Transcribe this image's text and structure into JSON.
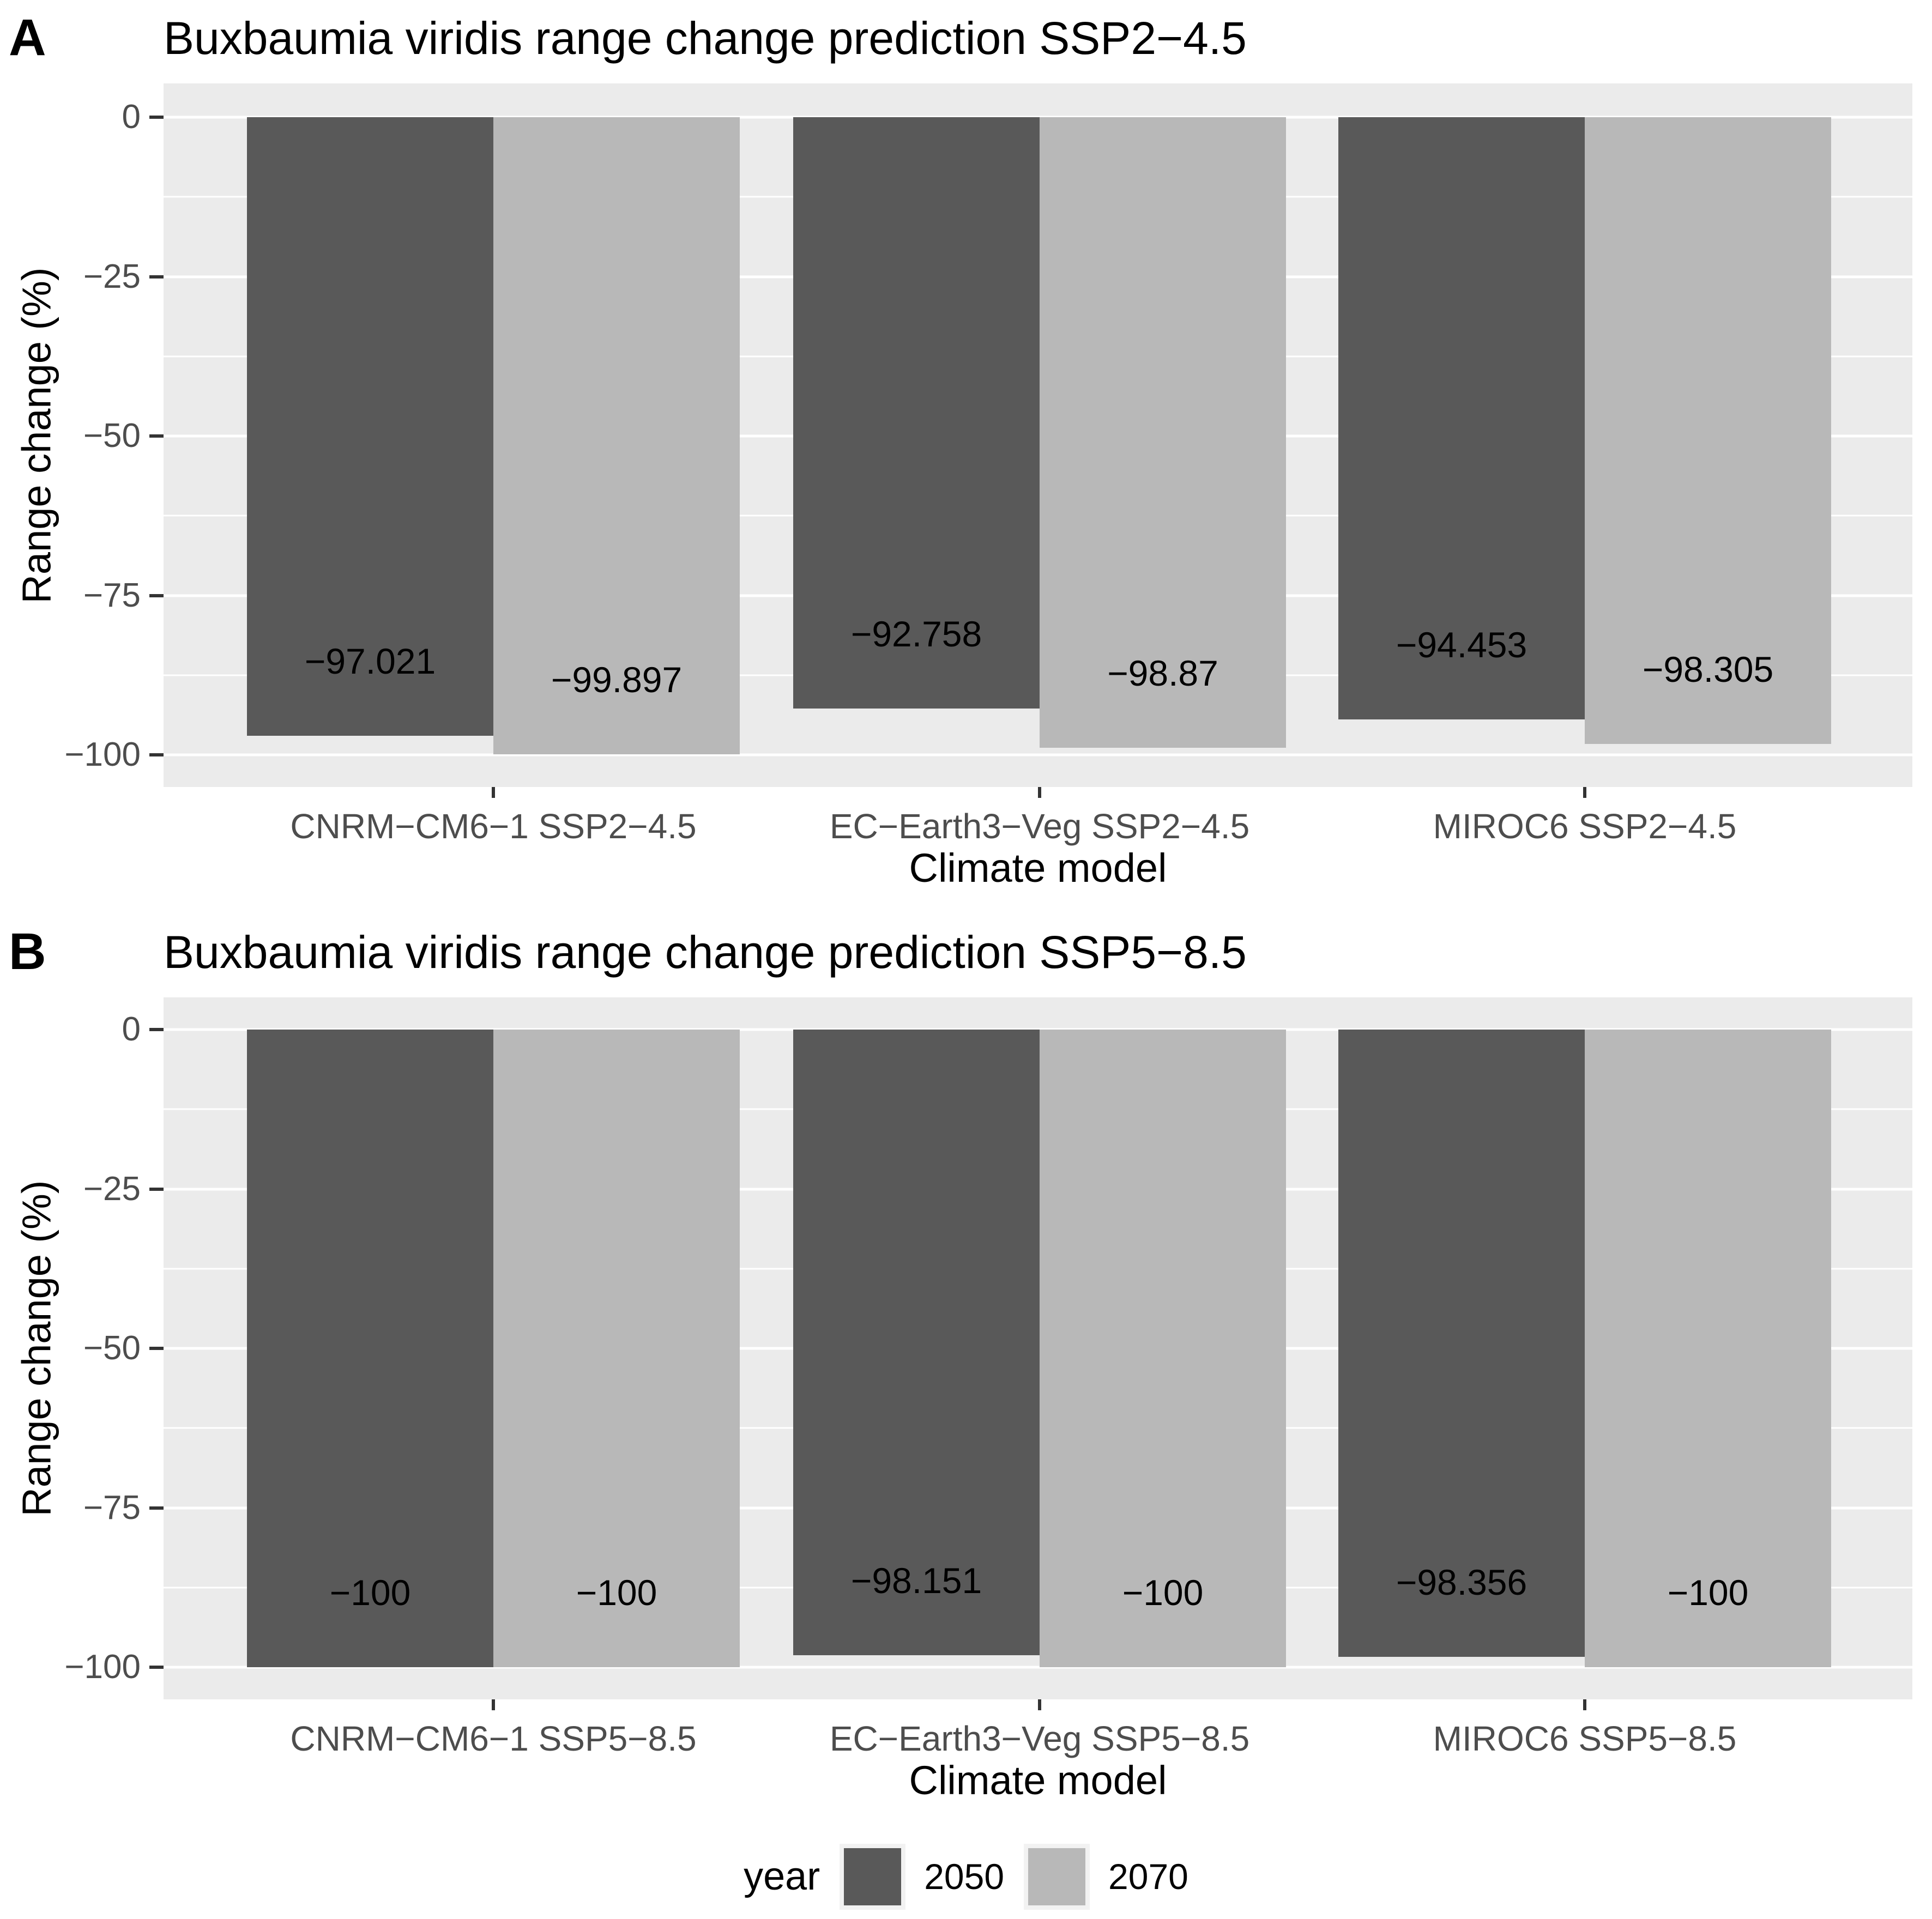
{
  "figure": {
    "background": "#FFFFFF",
    "panel_background": "#EBEBEB",
    "gridline_color": "#FFFFFF",
    "tick_color": "#333333",
    "tick_text_color": "#4D4D4D"
  },
  "chart_data": [
    {
      "type": "bar",
      "panel_tag": "A",
      "title": "Buxbaumia viridis range change prediction SSP2−4.5",
      "xlabel": "Climate model",
      "ylabel": "Range change (%)",
      "ylim": [
        -105,
        5
      ],
      "yticks": [
        0,
        -25,
        -50,
        -75,
        -100
      ],
      "ytick_labels": [
        "0",
        "−25",
        "−50",
        "−75",
        "−100"
      ],
      "grid": true,
      "legend_position": "bottom",
      "categories": [
        "CNRM−CM6−1 SSP2−4.5",
        "EC−Earth3−Veg SSP2−4.5",
        "MIROC6 SSP2−4.5"
      ],
      "series": [
        {
          "name": "2050",
          "values": [
            -97.021,
            -92.758,
            -94.453
          ],
          "labels": [
            "−97.021",
            "−92.758",
            "−94.453"
          ]
        },
        {
          "name": "2070",
          "values": [
            -99.897,
            -98.87,
            -98.305
          ],
          "labels": [
            "−99.897",
            "−98.87",
            "−98.305"
          ]
        }
      ]
    },
    {
      "type": "bar",
      "panel_tag": "B",
      "title": "Buxbaumia viridis range change prediction SSP5−8.5",
      "xlabel": "Climate model",
      "ylabel": "Range change (%)",
      "ylim": [
        -105,
        5
      ],
      "yticks": [
        0,
        -25,
        -50,
        -75,
        -100
      ],
      "ytick_labels": [
        "0",
        "−25",
        "−50",
        "−75",
        "−100"
      ],
      "grid": true,
      "legend_position": "bottom",
      "categories": [
        "CNRM−CM6−1 SSP5−8.5",
        "EC−Earth3−Veg SSP5−8.5",
        "MIROC6 SSP5−8.5"
      ],
      "series": [
        {
          "name": "2050",
          "values": [
            -100,
            -98.151,
            -98.356
          ],
          "labels": [
            "−100",
            "−98.151",
            "−98.356"
          ]
        },
        {
          "name": "2070",
          "values": [
            -100,
            -100,
            -100
          ],
          "labels": [
            "−100",
            "−100",
            "−100"
          ]
        }
      ]
    }
  ],
  "legend": {
    "title": "year",
    "entries": [
      {
        "label": "2050",
        "color": "#595959"
      },
      {
        "label": "2070",
        "color": "#B8B8B8"
      }
    ]
  }
}
